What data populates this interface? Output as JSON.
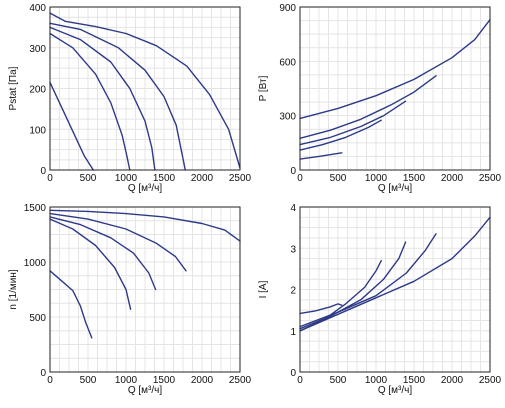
{
  "colors": {
    "series": "#2e3a87",
    "grid": "#e4e4e4",
    "frame": "#222222"
  },
  "chart_data": [
    {
      "type": "line",
      "grid": true,
      "xlabel": "Q [м³/ч]",
      "ylabel": "Pstat [Па]",
      "xlim": [
        0,
        2500
      ],
      "ylim": [
        0,
        400
      ],
      "xticks": [
        0,
        500,
        1000,
        1500,
        2000,
        2500
      ],
      "yticks": [
        0,
        100,
        200,
        300,
        400
      ],
      "series": [
        {
          "x": [
            0,
            150,
            300,
            450,
            570
          ],
          "y": [
            215,
            155,
            95,
            35,
            0
          ]
        },
        {
          "x": [
            0,
            300,
            600,
            800,
            950,
            1010,
            1050
          ],
          "y": [
            335,
            300,
            235,
            165,
            85,
            35,
            0
          ]
        },
        {
          "x": [
            0,
            400,
            800,
            1050,
            1250,
            1340,
            1380
          ],
          "y": [
            350,
            320,
            265,
            200,
            120,
            55,
            0
          ]
        },
        {
          "x": [
            0,
            400,
            900,
            1250,
            1500,
            1660,
            1780
          ],
          "y": [
            360,
            345,
            300,
            245,
            180,
            110,
            0
          ]
        },
        {
          "x": [
            0,
            200,
            600,
            1000,
            1400,
            1800,
            2100,
            2350,
            2500
          ],
          "y": [
            385,
            365,
            352,
            335,
            305,
            255,
            185,
            100,
            5
          ]
        }
      ]
    },
    {
      "type": "line",
      "grid": true,
      "xlabel": "Q [м³/ч]",
      "ylabel": "P [Вт]",
      "xlim": [
        0,
        2500
      ],
      "ylim": [
        0,
        900
      ],
      "xticks": [
        0,
        500,
        1000,
        1500,
        2000,
        2500
      ],
      "yticks": [
        0,
        300,
        600,
        900
      ],
      "series": [
        {
          "x": [
            0,
            250,
            550
          ],
          "y": [
            60,
            75,
            95
          ]
        },
        {
          "x": [
            0,
            300,
            600,
            900,
            1070
          ],
          "y": [
            110,
            140,
            180,
            235,
            275
          ]
        },
        {
          "x": [
            0,
            400,
            800,
            1100,
            1390
          ],
          "y": [
            140,
            180,
            240,
            300,
            380
          ]
        },
        {
          "x": [
            0,
            400,
            800,
            1200,
            1500,
            1790
          ],
          "y": [
            175,
            220,
            280,
            360,
            430,
            520
          ]
        },
        {
          "x": [
            0,
            500,
            1000,
            1500,
            2000,
            2300,
            2500
          ],
          "y": [
            285,
            340,
            410,
            500,
            620,
            720,
            830
          ]
        }
      ]
    },
    {
      "type": "line",
      "grid": true,
      "xlabel": "Q [м³/ч]",
      "ylabel": "n [1/мин]",
      "xlim": [
        0,
        2500
      ],
      "ylim": [
        0,
        1500
      ],
      "xticks": [
        0,
        500,
        1000,
        1500,
        2000,
        2500
      ],
      "yticks": [
        0,
        500,
        1000,
        1500
      ],
      "series": [
        {
          "x": [
            0,
            150,
            300,
            400,
            470,
            550
          ],
          "y": [
            920,
            830,
            740,
            600,
            450,
            310
          ]
        },
        {
          "x": [
            0,
            300,
            600,
            850,
            1000,
            1060
          ],
          "y": [
            1390,
            1300,
            1150,
            950,
            750,
            570
          ]
        },
        {
          "x": [
            0,
            400,
            800,
            1100,
            1300,
            1390
          ],
          "y": [
            1410,
            1340,
            1220,
            1080,
            900,
            750
          ]
        },
        {
          "x": [
            0,
            500,
            1000,
            1400,
            1650,
            1790
          ],
          "y": [
            1440,
            1390,
            1300,
            1170,
            1050,
            920
          ]
        },
        {
          "x": [
            0,
            500,
            1000,
            1500,
            2000,
            2300,
            2500
          ],
          "y": [
            1470,
            1460,
            1440,
            1410,
            1350,
            1290,
            1190
          ]
        }
      ]
    },
    {
      "type": "line",
      "grid": true,
      "xlabel": "Q [м³/ч]",
      "ylabel": "I [A]",
      "xlim": [
        0,
        2500
      ],
      "ylim": [
        0,
        4
      ],
      "xticks": [
        0,
        500,
        1000,
        1500,
        2000,
        2500
      ],
      "yticks": [
        0,
        1,
        2,
        3,
        4
      ],
      "series": [
        {
          "x": [
            0,
            200,
            400,
            500,
            550
          ],
          "y": [
            1.42,
            1.48,
            1.58,
            1.65,
            1.62
          ]
        },
        {
          "x": [
            0,
            300,
            600,
            850,
            1000,
            1070
          ],
          "y": [
            1.0,
            1.25,
            1.65,
            2.05,
            2.45,
            2.7
          ]
        },
        {
          "x": [
            0,
            400,
            800,
            1100,
            1300,
            1390
          ],
          "y": [
            1.05,
            1.35,
            1.75,
            2.25,
            2.75,
            3.15
          ]
        },
        {
          "x": [
            0,
            500,
            1000,
            1400,
            1650,
            1790
          ],
          "y": [
            1.1,
            1.45,
            1.85,
            2.4,
            2.95,
            3.35
          ]
        },
        {
          "x": [
            0,
            500,
            1000,
            1500,
            2000,
            2300,
            2500
          ],
          "y": [
            1.0,
            1.4,
            1.8,
            2.2,
            2.75,
            3.3,
            3.75
          ]
        }
      ]
    }
  ]
}
